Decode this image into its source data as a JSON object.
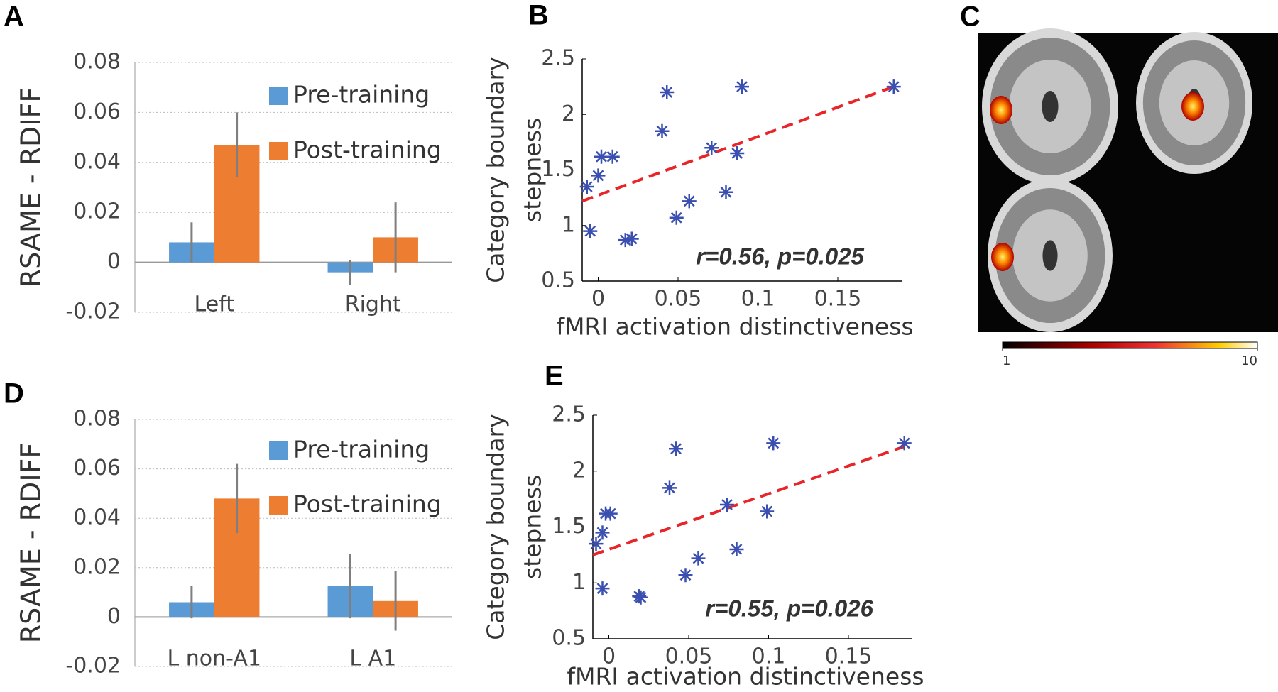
{
  "chart_data": [
    {
      "type": "bar",
      "panel": "A",
      "ylabel": "RSAME - RDIFF",
      "categories": [
        "Left",
        "Right"
      ],
      "series": [
        {
          "name": "Pre-training",
          "color": "#5b9bd5",
          "values": [
            0.008,
            -0.004
          ],
          "errors": [
            0.008,
            0.005
          ]
        },
        {
          "name": "Post-training",
          "color": "#ed7d31",
          "values": [
            0.047,
            0.01
          ],
          "errors": [
            0.013,
            0.014
          ]
        }
      ],
      "ylim": [
        -0.02,
        0.08
      ],
      "yticks": [
        -0.02,
        0,
        0.02,
        0.04,
        0.06,
        0.08
      ],
      "grid": true
    },
    {
      "type": "scatter",
      "panel": "B",
      "xlabel": "fMRI activation distinctiveness",
      "ylabel": [
        "Category boundary",
        "stepness"
      ],
      "annotation": "r=0.56, p=0.025",
      "color": "#3a4fb0",
      "fit_color": "#e8262a",
      "x": [
        -0.007,
        -0.005,
        0,
        0.002,
        0.009,
        0.017,
        0.021,
        0.04,
        0.043,
        0.049,
        0.057,
        0.071,
        0.08,
        0.087,
        0.09,
        0.185
      ],
      "y": [
        1.35,
        0.95,
        1.45,
        1.62,
        1.62,
        0.87,
        0.88,
        1.85,
        2.2,
        1.07,
        1.22,
        1.7,
        1.3,
        1.65,
        2.25,
        2.25
      ],
      "fit": {
        "x": [
          -0.01,
          0.185
        ],
        "y": [
          1.22,
          2.25
        ]
      },
      "xlim": [
        -0.01,
        0.19
      ],
      "ylim": [
        0.5,
        2.5
      ],
      "xticks": [
        0,
        0.05,
        0.1,
        0.15
      ],
      "yticks": [
        0.5,
        1,
        1.5,
        2,
        2.5
      ]
    },
    {
      "type": "brain",
      "panel": "C",
      "clim": [
        1,
        10
      ],
      "colorbar_ticks": [
        1,
        10
      ]
    },
    {
      "type": "bar",
      "panel": "D",
      "ylabel": "RSAME - RDIFF",
      "categories": [
        "L non-A1",
        "L A1"
      ],
      "series": [
        {
          "name": "Pre-training",
          "color": "#5b9bd5",
          "values": [
            0.006,
            0.0125
          ],
          "errors": [
            0.0065,
            0.013
          ]
        },
        {
          "name": "Post-training",
          "color": "#ed7d31",
          "values": [
            0.048,
            0.0065
          ],
          "errors": [
            0.014,
            0.012
          ]
        }
      ],
      "ylim": [
        -0.02,
        0.08
      ],
      "yticks": [
        -0.02,
        0,
        0.02,
        0.04,
        0.06,
        0.08
      ],
      "grid": true
    },
    {
      "type": "scatter",
      "panel": "E",
      "xlabel": "fMRI activation distinctiveness",
      "ylabel": [
        "Category boundary",
        "stepness"
      ],
      "annotation": "r=0.55, p=0.026",
      "color": "#3a4fb0",
      "fit_color": "#e8262a",
      "x": [
        -0.008,
        -0.004,
        -0.004,
        -0.002,
        0.001,
        0.019,
        0.02,
        0.038,
        0.042,
        0.048,
        0.056,
        0.074,
        0.08,
        0.099,
        0.103,
        0.185
      ],
      "y": [
        1.35,
        0.95,
        1.45,
        1.62,
        1.62,
        0.88,
        0.87,
        1.85,
        2.2,
        1.07,
        1.22,
        1.7,
        1.3,
        1.64,
        2.25,
        2.25
      ],
      "fit": {
        "x": [
          -0.01,
          0.185
        ],
        "y": [
          1.25,
          2.22
        ]
      },
      "xlim": [
        -0.01,
        0.19
      ],
      "ylim": [
        0.5,
        2.5
      ],
      "xticks": [
        0,
        0.05,
        0.1,
        0.15
      ],
      "yticks": [
        0.5,
        1,
        1.5,
        2,
        2.5
      ]
    }
  ]
}
